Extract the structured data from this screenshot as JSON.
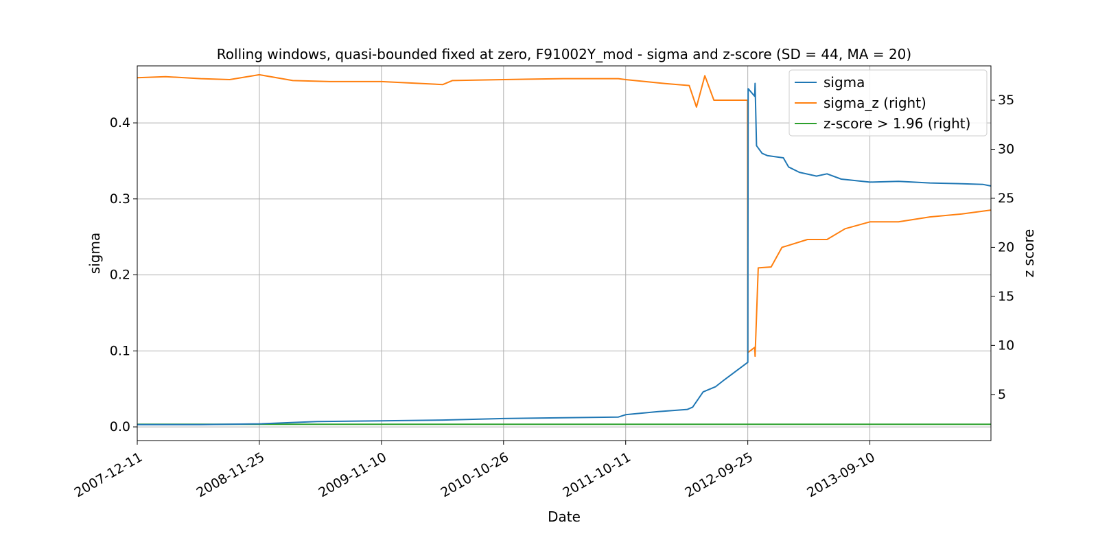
{
  "chart_data": {
    "type": "line",
    "title": "Rolling windows, quasi-bounded fixed at zero, F91002Y_mod - sigma and z-score (SD = 44, MA = 20)",
    "xlabel": "Date",
    "ylabel_left": "sigma",
    "ylabel_right": "z score",
    "x_ticks": [
      "2007-12-11",
      "2008-11-25",
      "2009-11-10",
      "2010-10-26",
      "2011-10-11",
      "2012-09-25",
      "2013-09-10"
    ],
    "xlim": [
      "2007-12-11",
      "2014-08-23"
    ],
    "ylim_left": [
      -0.018,
      0.475
    ],
    "ylim_right": [
      0.3,
      38.5
    ],
    "y_ticks_left": [
      "0.0",
      "0.1",
      "0.2",
      "0.3",
      "0.4"
    ],
    "y_ticks_right": [
      "5",
      "10",
      "15",
      "20",
      "25",
      "30",
      "35"
    ],
    "grid": true,
    "legend_position": "top-right",
    "legend": [
      "sigma",
      "sigma_z (right)",
      "z-score > 1.96 (right)"
    ],
    "colors": {
      "sigma": "#1f77b4",
      "sigma_z": "#ff7f0e",
      "threshold": "#2ca02c",
      "grid": "#b0b0b0"
    },
    "series": [
      {
        "name": "sigma",
        "axis": "left",
        "x": [
          "2007-12-11",
          "2008-06-10",
          "2008-11-25",
          "2009-05-10",
          "2009-11-10",
          "2010-05-05",
          "2010-10-26",
          "2011-04-15",
          "2011-09-20",
          "2011-10-11",
          "2012-01-10",
          "2012-04-05",
          "2012-04-20",
          "2012-05-20",
          "2012-06-25",
          "2012-07-20",
          "2012-09-25",
          "2012-09-26",
          "2012-10-15",
          "2012-10-16",
          "2012-10-20",
          "2012-11-05",
          "2012-11-20",
          "2013-01-05",
          "2013-01-20",
          "2013-02-20",
          "2013-04-10",
          "2013-05-10",
          "2013-06-20",
          "2013-09-10",
          "2013-12-01",
          "2014-03-01",
          "2014-06-01",
          "2014-08-01",
          "2014-08-23"
        ],
        "values": [
          0.003,
          0.003,
          0.004,
          0.007,
          0.008,
          0.009,
          0.011,
          0.012,
          0.013,
          0.016,
          0.02,
          0.023,
          0.026,
          0.046,
          0.053,
          0.062,
          0.085,
          0.445,
          0.435,
          0.452,
          0.37,
          0.36,
          0.357,
          0.354,
          0.342,
          0.335,
          0.33,
          0.333,
          0.326,
          0.322,
          0.323,
          0.321,
          0.32,
          0.319,
          0.317
        ]
      },
      {
        "name": "sigma_z (right)",
        "axis": "right",
        "x": [
          "2007-12-11",
          "2008-03-01",
          "2008-06-10",
          "2008-09-01",
          "2008-11-25",
          "2009-03-01",
          "2009-06-15",
          "2009-11-10",
          "2010-05-05",
          "2010-06-01",
          "2010-10-26",
          "2011-04-15",
          "2011-09-20",
          "2011-10-11",
          "2012-02-01",
          "2012-04-10",
          "2012-05-01",
          "2012-05-25",
          "2012-06-20",
          "2012-07-15",
          "2012-08-01",
          "2012-09-24",
          "2012-09-25",
          "2012-09-26",
          "2012-10-15",
          "2012-10-16",
          "2012-10-25",
          "2012-12-01",
          "2013-01-01",
          "2013-01-20",
          "2013-03-15",
          "2013-05-10",
          "2013-07-01",
          "2013-09-10",
          "2013-12-01",
          "2014-03-01",
          "2014-06-01",
          "2014-08-23"
        ],
        "values": [
          37.3,
          37.4,
          37.2,
          37.1,
          37.6,
          37.0,
          36.9,
          36.9,
          36.6,
          37.0,
          37.1,
          37.2,
          37.2,
          37.1,
          36.7,
          36.5,
          34.3,
          37.5,
          35.0,
          35.0,
          35.0,
          35.0,
          9.3,
          9.3,
          9.8,
          8.9,
          17.9,
          18.0,
          20.0,
          20.2,
          20.8,
          20.8,
          21.9,
          22.6,
          22.6,
          23.1,
          23.4,
          23.8
        ]
      },
      {
        "name": "z-score > 1.96 (right)",
        "axis": "right",
        "x": [
          "2007-12-11",
          "2014-08-23"
        ],
        "values": [
          1.96,
          1.96
        ]
      }
    ]
  }
}
